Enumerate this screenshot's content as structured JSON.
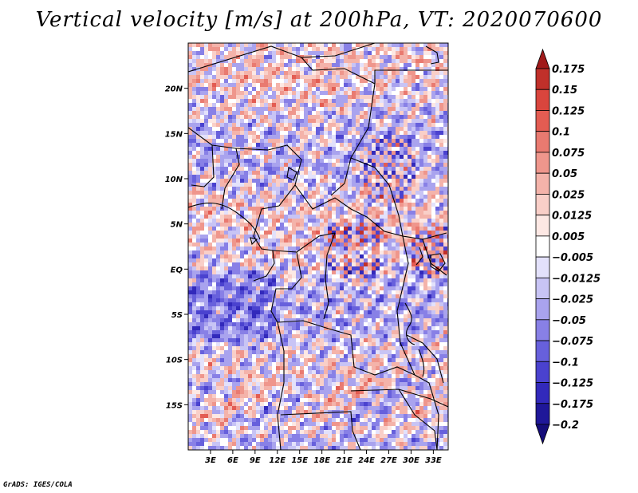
{
  "title": "Vertical velocity [m/s] at 200hPa, VT: 2020070600",
  "credit": "GrADS: IGES/COLA",
  "chart_data": {
    "type": "heatmap",
    "variable": "Vertical velocity",
    "units": "m/s",
    "level": "200hPa",
    "valid_time": "2020070600",
    "lon_range": [
      0,
      35
    ],
    "lat_range": [
      -20,
      25
    ],
    "lon_ticks": [
      "3E",
      "6E",
      "9E",
      "12E",
      "15E",
      "18E",
      "21E",
      "24E",
      "27E",
      "30E",
      "33E"
    ],
    "lon_tick_values": [
      3,
      6,
      9,
      12,
      15,
      18,
      21,
      24,
      27,
      30,
      33
    ],
    "lat_ticks": [
      "20N",
      "15N",
      "10N",
      "5N",
      "EQ",
      "5S",
      "10S",
      "15S"
    ],
    "lat_tick_values": [
      20,
      15,
      10,
      5,
      0,
      -5,
      -10,
      -15
    ],
    "colorbar_labels": [
      "0.175",
      "0.15",
      "0.125",
      "0.1",
      "0.075",
      "0.05",
      "0.025",
      "0.0125",
      "0.005",
      "−0.005",
      "−0.0125",
      "−0.025",
      "−0.05",
      "−0.075",
      "−0.1",
      "−0.125",
      "−0.175",
      "−0.2"
    ],
    "colorbar_colors": [
      "#a01a1a",
      "#c0302a",
      "#d9453d",
      "#e35c52",
      "#e97a70",
      "#ef968c",
      "#f4b3aa",
      "#f9cfc8",
      "#fde8e4",
      "#ffffff",
      "#e3e1fb",
      "#c8c4f5",
      "#a9a3ee",
      "#8880e6",
      "#6760dc",
      "#4a42cf",
      "#3229bb",
      "#1f1799",
      "#150d7a"
    ]
  }
}
